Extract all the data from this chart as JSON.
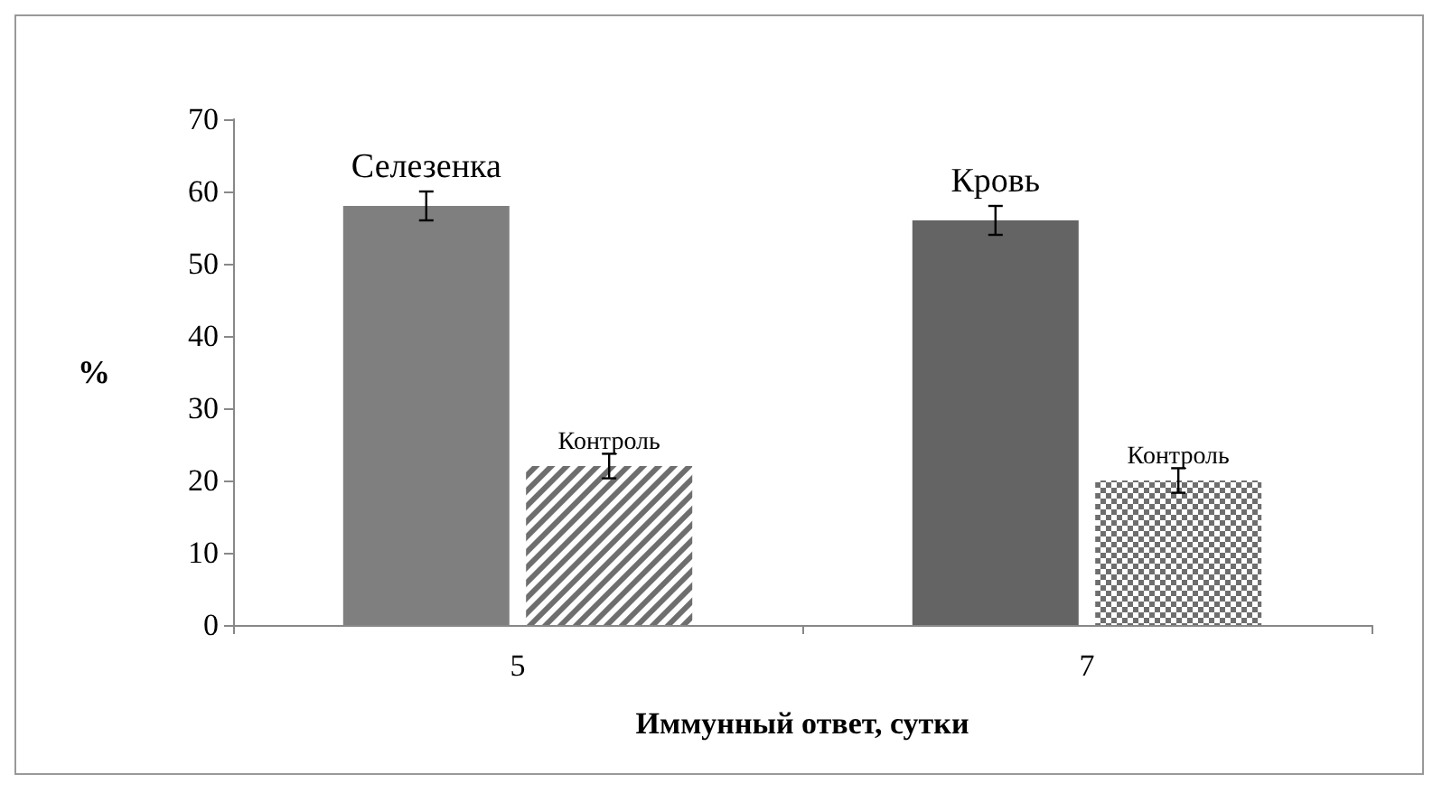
{
  "chart_data": {
    "type": "bar",
    "xlabel": "Иммунный ответ, сутки",
    "ylabel": "%",
    "categories": [
      "5",
      "7"
    ],
    "series": [
      {
        "colors": [
          "#7f7f7f",
          "#646464"
        ],
        "values": [
          58,
          56
        ],
        "errors": [
          2,
          2
        ],
        "value_labels": [
          "Селезенка",
          "Кровь"
        ]
      },
      {
        "colors": [
          "#6e6e6e",
          "#6e6e6e"
        ],
        "values": [
          22,
          20
        ],
        "errors": [
          1.7,
          1.7
        ],
        "value_labels": [
          "Контроль",
          "Контроль"
        ]
      }
    ],
    "ylim": [
      0,
      70
    ],
    "yticks": [
      0,
      10,
      20,
      30,
      40,
      50,
      60,
      70
    ],
    "grid": false
  }
}
